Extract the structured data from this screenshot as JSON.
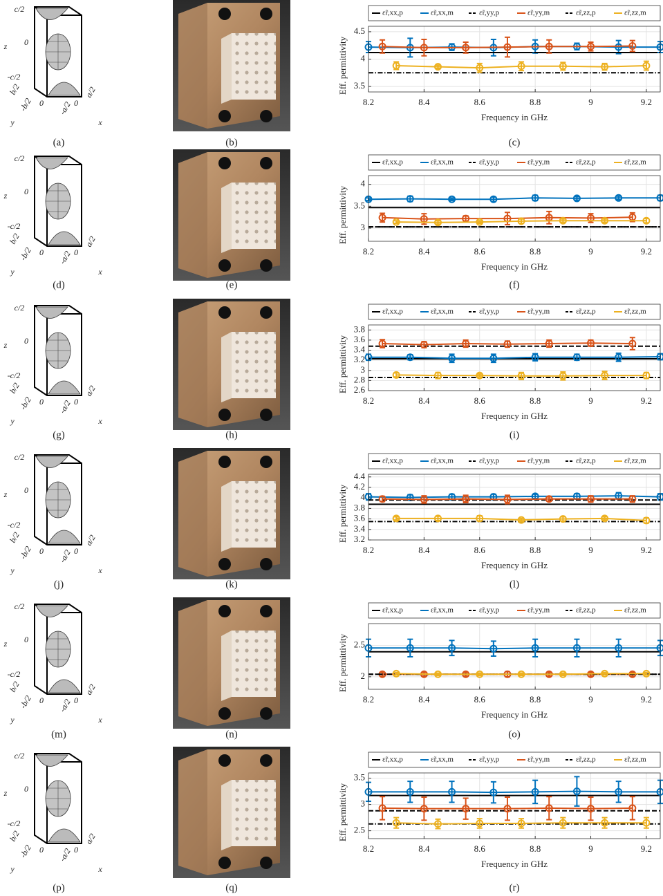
{
  "captions": [
    [
      "(a)",
      "(b)",
      "(c)"
    ],
    [
      "(d)",
      "(e)",
      "(f)"
    ],
    [
      "(g)",
      "(h)",
      "(i)"
    ],
    [
      "(j)",
      "(k)",
      "(l)"
    ],
    [
      "(m)",
      "(n)",
      "(o)"
    ],
    [
      "(p)",
      "(q)",
      "(r)"
    ]
  ],
  "unit_cells": [
    {
      "labels": [
        "c/2",
        "0",
        "-c/2",
        "z",
        "b/2",
        "0",
        "-b/2",
        "-a/2",
        "0",
        "a/2",
        "y",
        "x"
      ]
    },
    {
      "labels": [
        "c/2",
        "0",
        "-c/2",
        "z",
        "b/2",
        "0",
        "-b/2",
        "-a/2",
        "0",
        "a/2",
        "y",
        "x"
      ]
    },
    {
      "labels": [
        "c/2",
        "0",
        "-c/2",
        "z",
        "b/2",
        "0",
        "-b/2",
        "-a/2",
        "0",
        "a/2",
        "y",
        "x"
      ]
    },
    {
      "labels": [
        "c/2",
        "0",
        "-c/2",
        "z",
        "b/2",
        "0",
        "-b/2",
        "-a/2",
        "0",
        "a/2",
        "y",
        "x"
      ]
    },
    {
      "labels": [
        "c/2",
        "0",
        "-c/2",
        "z",
        "b/2",
        "0",
        "-b/2",
        "-a/2",
        "0",
        "a/2",
        "y",
        "x"
      ]
    },
    {
      "labels": [
        "c/2",
        "0",
        "-c/2",
        "z",
        "b/2",
        "0",
        "-b/2",
        "-a/2",
        "0",
        "a/2",
        "y",
        "x"
      ]
    }
  ],
  "chart_data": [
    {
      "type": "line",
      "xlabel": "Frequency in GHz",
      "ylabel": "Eff. permittivity",
      "grid": true,
      "xlim": [
        8.2,
        9.25
      ],
      "xticks": [
        8.2,
        8.4,
        8.6,
        8.8,
        9,
        9.2
      ],
      "ylim": [
        3.4,
        4.6
      ],
      "yticks": [
        3.5,
        4,
        4.5
      ],
      "series": [
        {
          "name": "ε̃r,xx,p",
          "color": "#000000",
          "dash": "solid",
          "x": [
            8.2,
            9.25
          ],
          "values": [
            4.12,
            4.12
          ]
        },
        {
          "name": "ε̃r,xx,m",
          "color": "#0072bd",
          "dash": "solid",
          "x": [
            8.2,
            8.35,
            8.5,
            8.65,
            8.8,
            8.95,
            9.1,
            9.25
          ],
          "values": [
            4.22,
            4.21,
            4.22,
            4.21,
            4.23,
            4.23,
            4.22,
            4.22
          ],
          "errors": [
            0.1,
            0.17,
            0.06,
            0.15,
            0.12,
            0.06,
            0.12,
            0.1
          ]
        },
        {
          "name": "ε̃r,yy,p",
          "color": "#000000",
          "dash": "dashed",
          "x": [
            8.2,
            9.25
          ],
          "values": [
            4.12,
            4.12
          ]
        },
        {
          "name": "ε̃r,yy,m",
          "color": "#d95319",
          "dash": "solid",
          "x": [
            8.25,
            8.4,
            8.55,
            8.7,
            8.85,
            9.0,
            9.15
          ],
          "values": [
            4.23,
            4.21,
            4.21,
            4.22,
            4.23,
            4.23,
            4.24
          ],
          "errors": [
            0.12,
            0.15,
            0.1,
            0.18,
            0.12,
            0.08,
            0.1
          ]
        },
        {
          "name": "ε̃r,zz,p",
          "color": "#000000",
          "dash": "dashdot",
          "x": [
            8.2,
            9.25
          ],
          "values": [
            3.75,
            3.75
          ]
        },
        {
          "name": "ε̃r,zz,m",
          "color": "#edb120",
          "dash": "solid",
          "x": [
            8.3,
            8.45,
            8.6,
            8.75,
            8.9,
            9.05,
            9.2
          ],
          "values": [
            3.88,
            3.86,
            3.84,
            3.87,
            3.87,
            3.86,
            3.88
          ],
          "errors": [
            0.07,
            0.03,
            0.08,
            0.08,
            0.07,
            0.06,
            0.08
          ]
        }
      ]
    },
    {
      "type": "line",
      "xlabel": "Frequency in GHz",
      "ylabel": "Eff. permittivity",
      "grid": true,
      "xlim": [
        8.2,
        9.25
      ],
      "xticks": [
        8.2,
        8.4,
        8.6,
        8.8,
        9,
        9.2
      ],
      "ylim": [
        2.7,
        4.2
      ],
      "yticks": [
        3,
        3.5,
        4
      ],
      "series": [
        {
          "name": "ε̃r,xx,p",
          "color": "#000000",
          "dash": "solid",
          "x": [
            8.2,
            9.25
          ],
          "values": [
            3.47,
            3.47
          ]
        },
        {
          "name": "ε̃r,xx,m",
          "color": "#0072bd",
          "dash": "solid",
          "x": [
            8.2,
            8.35,
            8.5,
            8.65,
            8.8,
            8.95,
            9.1,
            9.25
          ],
          "values": [
            3.66,
            3.67,
            3.66,
            3.66,
            3.69,
            3.68,
            3.69,
            3.69
          ],
          "errors": [
            0.03,
            0.06,
            0.03,
            0.05,
            0.06,
            0.04,
            0.04,
            0.06
          ]
        },
        {
          "name": "ε̃r,yy,p",
          "color": "#000000",
          "dash": "dashed",
          "x": [
            8.2,
            9.25
          ],
          "values": [
            3.03,
            3.03
          ]
        },
        {
          "name": "ε̃r,yy,m",
          "color": "#d95319",
          "dash": "solid",
          "x": [
            8.25,
            8.4,
            8.55,
            8.7,
            8.85,
            9.0,
            9.15
          ],
          "values": [
            3.24,
            3.21,
            3.22,
            3.22,
            3.24,
            3.23,
            3.25
          ],
          "errors": [
            0.1,
            0.12,
            0.06,
            0.14,
            0.14,
            0.1,
            0.1
          ]
        },
        {
          "name": "ε̃r,zz,p",
          "color": "#000000",
          "dash": "dashdot",
          "x": [
            8.2,
            9.25
          ],
          "values": [
            3.03,
            3.03
          ]
        },
        {
          "name": "ε̃r,zz,m",
          "color": "#edb120",
          "dash": "solid",
          "x": [
            8.3,
            8.45,
            8.6,
            8.75,
            8.9,
            9.05,
            9.2
          ],
          "values": [
            3.14,
            3.13,
            3.14,
            3.16,
            3.17,
            3.17,
            3.17
          ],
          "errors": [
            0.03,
            0.04,
            0.03,
            0.05,
            0.04,
            0.04,
            0.05
          ]
        }
      ]
    },
    {
      "type": "line",
      "xlabel": "Frequency in GHz",
      "ylabel": "Eff. permittivity",
      "grid": true,
      "xlim": [
        8.2,
        9.25
      ],
      "xticks": [
        8.2,
        8.4,
        8.6,
        8.8,
        9,
        9.2
      ],
      "ylim": [
        2.6,
        3.9
      ],
      "yticks": [
        2.6,
        2.8,
        3,
        3.2,
        3.4,
        3.6,
        3.8
      ],
      "series": [
        {
          "name": "ε̃r,xx,p",
          "color": "#000000",
          "dash": "solid",
          "x": [
            8.2,
            9.25
          ],
          "values": [
            3.23,
            3.23
          ]
        },
        {
          "name": "ε̃r,xx,m",
          "color": "#0072bd",
          "dash": "solid",
          "x": [
            8.2,
            8.35,
            8.5,
            8.65,
            8.8,
            8.95,
            9.1,
            9.25
          ],
          "values": [
            3.26,
            3.26,
            3.24,
            3.24,
            3.26,
            3.26,
            3.26,
            3.27
          ],
          "errors": [
            0.06,
            0.05,
            0.08,
            0.08,
            0.07,
            0.06,
            0.08,
            0.06
          ]
        },
        {
          "name": "ε̃r,yy,p",
          "color": "#000000",
          "dash": "dashed",
          "x": [
            8.2,
            9.25
          ],
          "values": [
            3.48,
            3.48
          ]
        },
        {
          "name": "ε̃r,yy,m",
          "color": "#d95319",
          "dash": "solid",
          "x": [
            8.25,
            8.4,
            8.55,
            8.7,
            8.85,
            9.0,
            9.15
          ],
          "values": [
            3.53,
            3.51,
            3.53,
            3.52,
            3.53,
            3.54,
            3.53
          ],
          "errors": [
            0.08,
            0.06,
            0.07,
            0.06,
            0.07,
            0.06,
            0.12
          ]
        },
        {
          "name": "ε̃r,zz,p",
          "color": "#000000",
          "dash": "dashdot",
          "x": [
            8.2,
            9.25
          ],
          "values": [
            2.86,
            2.86
          ]
        },
        {
          "name": "ε̃r,zz,m",
          "color": "#edb120",
          "dash": "solid",
          "x": [
            8.3,
            8.45,
            8.6,
            8.75,
            8.9,
            9.05,
            9.2
          ],
          "values": [
            2.91,
            2.9,
            2.9,
            2.89,
            2.89,
            2.9,
            2.9
          ],
          "errors": [
            0.04,
            0.06,
            0.03,
            0.07,
            0.08,
            0.08,
            0.06
          ]
        }
      ]
    },
    {
      "type": "line",
      "xlabel": "Frequency in GHz",
      "ylabel": "Eff. permittivity",
      "grid": true,
      "xlim": [
        8.2,
        9.25
      ],
      "xticks": [
        8.2,
        8.4,
        8.6,
        8.8,
        9,
        9.2
      ],
      "ylim": [
        3.2,
        4.45
      ],
      "yticks": [
        3.2,
        3.4,
        3.6,
        3.8,
        4,
        4.2,
        4.4
      ],
      "series": [
        {
          "name": "ε̃r,xx,p",
          "color": "#000000",
          "dash": "solid",
          "x": [
            8.2,
            9.25
          ],
          "values": [
            3.88,
            3.88
          ]
        },
        {
          "name": "ε̃r,xx,m",
          "color": "#0072bd",
          "dash": "solid",
          "x": [
            8.2,
            8.35,
            8.5,
            8.65,
            8.8,
            8.95,
            9.1,
            9.25
          ],
          "values": [
            4.02,
            4.01,
            4.02,
            4.02,
            4.03,
            4.03,
            4.04,
            4.02
          ],
          "errors": [
            0.06,
            0.05,
            0.05,
            0.05,
            0.04,
            0.05,
            0.06,
            0.06
          ]
        },
        {
          "name": "ε̃r,yy,p",
          "color": "#000000",
          "dash": "dashed",
          "x": [
            8.2,
            9.25
          ],
          "values": [
            3.96,
            3.96
          ]
        },
        {
          "name": "ε̃r,yy,m",
          "color": "#d95319",
          "dash": "solid",
          "x": [
            8.25,
            8.4,
            8.55,
            8.7,
            8.85,
            9.0,
            9.15
          ],
          "values": [
            3.98,
            3.97,
            3.98,
            3.97,
            3.98,
            3.98,
            3.98
          ],
          "errors": [
            0.05,
            0.07,
            0.07,
            0.08,
            0.04,
            0.06,
            0.06
          ]
        },
        {
          "name": "ε̃r,zz,p",
          "color": "#000000",
          "dash": "dashdot",
          "x": [
            8.2,
            9.25
          ],
          "values": [
            3.55,
            3.55
          ]
        },
        {
          "name": "ε̃r,zz,m",
          "color": "#edb120",
          "dash": "solid",
          "x": [
            8.3,
            8.45,
            8.6,
            8.75,
            8.9,
            9.05,
            9.2
          ],
          "values": [
            3.61,
            3.61,
            3.61,
            3.58,
            3.6,
            3.61,
            3.57
          ],
          "errors": [
            0.03,
            0.04,
            0.05,
            0.03,
            0.04,
            0.03,
            0.05
          ]
        }
      ]
    },
    {
      "type": "line",
      "xlabel": "Frequency in GHz",
      "ylabel": "Eff. permittivity",
      "grid": true,
      "xlim": [
        8.2,
        9.25
      ],
      "xticks": [
        8.2,
        8.4,
        8.6,
        8.8,
        9,
        9.2
      ],
      "ylim": [
        1.8,
        2.85
      ],
      "yticks": [
        2,
        2.5
      ],
      "series": [
        {
          "name": "ε̃r,xx,p",
          "color": "#000000",
          "dash": "solid",
          "x": [
            8.2,
            9.25
          ],
          "values": [
            2.4,
            2.4
          ]
        },
        {
          "name": "ε̃r,xx,m",
          "color": "#0072bd",
          "dash": "solid",
          "x": [
            8.2,
            8.35,
            8.5,
            8.65,
            8.8,
            8.95,
            9.1,
            9.25
          ],
          "values": [
            2.46,
            2.46,
            2.46,
            2.45,
            2.46,
            2.46,
            2.46,
            2.46
          ],
          "errors": [
            0.14,
            0.14,
            0.12,
            0.12,
            0.14,
            0.14,
            0.14,
            0.12
          ]
        },
        {
          "name": "ε̃r,yy,p",
          "color": "#000000",
          "dash": "dashed",
          "x": [
            8.2,
            9.25
          ],
          "values": [
            2.04,
            2.04
          ]
        },
        {
          "name": "ε̃r,yy,m",
          "color": "#d95319",
          "dash": "solid",
          "x": [
            8.25,
            8.4,
            8.55,
            8.7,
            8.85,
            9.0,
            9.15
          ],
          "values": [
            2.04,
            2.04,
            2.04,
            2.04,
            2.04,
            2.04,
            2.04
          ],
          "errors": [
            0.03,
            0.03,
            0.03,
            0.04,
            0.03,
            0.03,
            0.03
          ]
        },
        {
          "name": "ε̃r,zz,p",
          "color": "#000000",
          "dash": "dashdot",
          "x": [
            8.2,
            9.25
          ],
          "values": [
            2.04,
            2.04
          ]
        },
        {
          "name": "ε̃r,zz,m",
          "color": "#edb120",
          "dash": "solid",
          "x": [
            8.3,
            8.45,
            8.6,
            8.75,
            8.9,
            9.05,
            9.2
          ],
          "values": [
            2.05,
            2.04,
            2.04,
            2.04,
            2.04,
            2.05,
            2.05
          ],
          "errors": [
            0.02,
            0.02,
            0.02,
            0.02,
            0.02,
            0.02,
            0.02
          ]
        }
      ]
    },
    {
      "type": "line",
      "xlabel": "Frequency in GHz",
      "ylabel": "Eff. permittivity",
      "grid": true,
      "xlim": [
        8.2,
        9.25
      ],
      "xticks": [
        8.2,
        8.4,
        8.6,
        8.8,
        9,
        9.2
      ],
      "ylim": [
        2.35,
        3.6
      ],
      "yticks": [
        2.5,
        3,
        3.5
      ],
      "series": [
        {
          "name": "ε̃r,xx,p",
          "color": "#000000",
          "dash": "solid",
          "x": [
            8.2,
            9.25
          ],
          "values": [
            3.17,
            3.17
          ]
        },
        {
          "name": "ε̃r,xx,m",
          "color": "#0072bd",
          "dash": "solid",
          "x": [
            8.2,
            8.35,
            8.5,
            8.65,
            8.8,
            8.95,
            9.1,
            9.25
          ],
          "values": [
            3.24,
            3.24,
            3.24,
            3.23,
            3.24,
            3.25,
            3.24,
            3.24
          ],
          "errors": [
            0.18,
            0.2,
            0.2,
            0.2,
            0.22,
            0.28,
            0.2,
            0.22
          ]
        },
        {
          "name": "ε̃r,yy,p",
          "color": "#000000",
          "dash": "dashed",
          "x": [
            8.2,
            9.25
          ],
          "values": [
            2.88,
            2.88
          ]
        },
        {
          "name": "ε̃r,yy,m",
          "color": "#d95319",
          "dash": "solid",
          "x": [
            8.25,
            8.4,
            8.55,
            8.7,
            8.85,
            9.0,
            9.15
          ],
          "values": [
            2.93,
            2.92,
            2.92,
            2.92,
            2.93,
            2.92,
            2.93
          ],
          "errors": [
            0.22,
            0.22,
            0.2,
            0.22,
            0.22,
            0.22,
            0.22
          ]
        },
        {
          "name": "ε̃r,zz,p",
          "color": "#000000",
          "dash": "dashdot",
          "x": [
            8.2,
            9.25
          ],
          "values": [
            2.63,
            2.63
          ]
        },
        {
          "name": "ε̃r,zz,m",
          "color": "#edb120",
          "dash": "solid",
          "x": [
            8.3,
            8.45,
            8.6,
            8.75,
            8.9,
            9.05,
            9.2
          ],
          "values": [
            2.65,
            2.63,
            2.64,
            2.64,
            2.65,
            2.65,
            2.65
          ],
          "errors": [
            0.1,
            0.09,
            0.09,
            0.09,
            0.1,
            0.1,
            0.1
          ]
        }
      ]
    }
  ]
}
